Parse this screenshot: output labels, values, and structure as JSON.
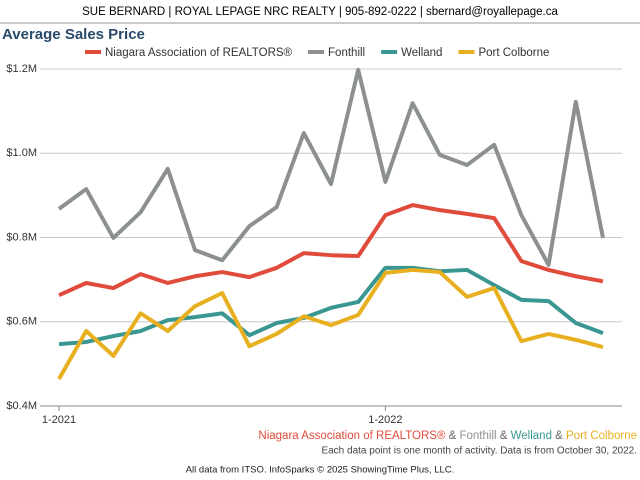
{
  "header": "SUE BERNARD | ROYAL LEPAGE NRC REALTY | 905-892-0222 | sbernard@royallepage.ca",
  "chart_data": {
    "type": "line",
    "title": "Average Sales Price",
    "categories": [
      "1-2021",
      null,
      null,
      null,
      null,
      null,
      null,
      null,
      null,
      null,
      null,
      null,
      "1-2022",
      null,
      null,
      null,
      null,
      null,
      null,
      null,
      null
    ],
    "series": [
      {
        "name": "Niagara Association of REALTORS®",
        "color": "#e04b3c",
        "values": [
          663000,
          692000,
          680000,
          713000,
          692000,
          708000,
          718000,
          706000,
          728000,
          763000,
          758000,
          756000,
          853000,
          877000,
          865000,
          856000,
          846000,
          744000,
          723000,
          708000,
          696000
        ]
      },
      {
        "name": "Fonthill",
        "color": "#8c9091",
        "values": [
          868000,
          915000,
          799000,
          860000,
          963000,
          770000,
          746000,
          827000,
          872000,
          1048000,
          927000,
          1198000,
          932000,
          1119000,
          996000,
          972000,
          1020000,
          853000,
          735000,
          1122000,
          799000
        ]
      },
      {
        "name": "Welland",
        "color": "#3a9690",
        "values": [
          547000,
          552000,
          566000,
          578000,
          604000,
          611000,
          620000,
          568000,
          597000,
          609000,
          633000,
          647000,
          728000,
          728000,
          720000,
          723000,
          687000,
          652000,
          649000,
          597000,
          573000
        ]
      },
      {
        "name": "Port Colborne",
        "color": "#e8b021",
        "values": [
          464000,
          578000,
          519000,
          620000,
          578000,
          637000,
          668000,
          542000,
          571000,
          613000,
          592000,
          616000,
          716000,
          723000,
          718000,
          659000,
          680000,
          554000,
          571000,
          557000,
          540000
        ]
      }
    ],
    "ylim": [
      400000,
      1200000
    ],
    "yticks": [
      {
        "value": 400000,
        "label": "$0.4M"
      },
      {
        "value": 600000,
        "label": "$0.6M"
      },
      {
        "value": 800000,
        "label": "$0.8M"
      },
      {
        "value": 1000000,
        "label": "$1.0M"
      },
      {
        "value": 1200000,
        "label": "$1.2M"
      }
    ],
    "grid": true,
    "legend": "top",
    "legend_separator": "&",
    "note": "Each data point is one month of activity. Data is from October 30, 2022."
  },
  "footer": "All data from ITSO. InfoSparks © 2025 ShowingTime Plus, LLC."
}
